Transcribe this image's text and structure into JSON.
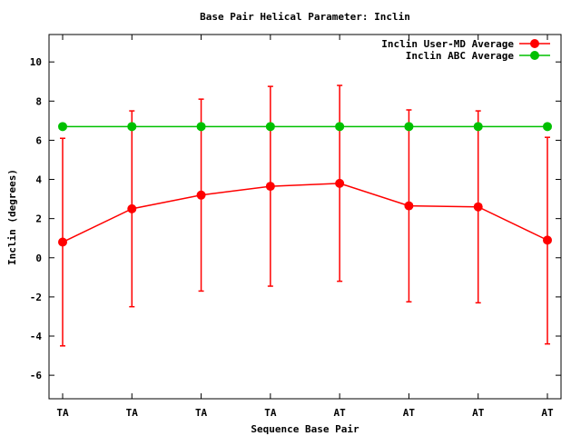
{
  "chart_data": {
    "type": "line",
    "title": "Base Pair Helical Parameter: Inclin",
    "xlabel": "Sequence Base Pair",
    "ylabel": "Inclin (degrees)",
    "categories": [
      "TA",
      "TA",
      "TA",
      "TA",
      "AT",
      "AT",
      "AT",
      "AT"
    ],
    "ylim": [
      -7.2,
      11.4
    ],
    "yticks": [
      -6,
      -4,
      -2,
      0,
      2,
      4,
      6,
      8,
      10
    ],
    "legend_position": "top-right",
    "grid": false,
    "series": [
      {
        "name": "Inclin User-MD Average",
        "color": "#ff0000",
        "values": [
          0.8,
          2.5,
          3.2,
          3.65,
          3.8,
          2.65,
          2.6,
          0.9
        ],
        "error_low": [
          -4.5,
          -2.5,
          -1.7,
          -1.45,
          -1.2,
          -2.25,
          -2.3,
          -4.4
        ],
        "error_high": [
          6.1,
          7.5,
          8.1,
          8.75,
          8.8,
          7.55,
          7.5,
          6.15
        ]
      },
      {
        "name": "Inclin ABC Average",
        "color": "#00c000",
        "values": [
          6.7,
          6.7,
          6.7,
          6.7,
          6.7,
          6.7,
          6.7,
          6.7
        ]
      }
    ]
  }
}
